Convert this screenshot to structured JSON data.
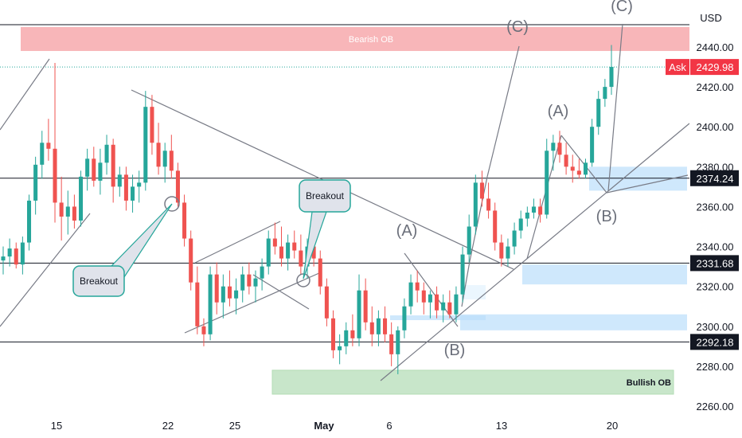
{
  "chart_data": {
    "type": "candlestick",
    "currency": "USD",
    "x_ticks": [
      "15",
      "22",
      "25",
      "May",
      "6",
      "13",
      "20"
    ],
    "y_ticks": [
      "2440.00",
      "2420.00",
      "2400.00",
      "2380.00",
      "2360.00",
      "2340.00",
      "2320.00",
      "2300.00",
      "2280.00",
      "2260.00"
    ],
    "ylim": [
      2256,
      2458
    ],
    "up_color": "#26a69a",
    "down_color": "#ef5350",
    "price_tags": [
      {
        "label": "Ask",
        "value": "2429.98",
        "color": "#f23645"
      },
      {
        "value": "2374.24",
        "color": "#131722"
      },
      {
        "value": "2331.68",
        "color": "#131722"
      },
      {
        "value": "2292.18",
        "color": "#131722"
      }
    ],
    "horizontal_levels": [
      2456,
      2374.24,
      2331.68,
      2292.18
    ],
    "zones": [
      {
        "label": "Bearish OB",
        "from": 2438,
        "to": 2450,
        "color": "#f7a9ad"
      },
      {
        "label": "Bullish OB",
        "from": 2266,
        "to": 2278,
        "color": "#a5d6a7"
      }
    ],
    "demand_boxes": [
      {
        "from": 2368,
        "to": 2380
      },
      {
        "from": 2321,
        "to": 2331
      },
      {
        "from": 2298,
        "to": 2306
      }
    ],
    "wave_labels": [
      "(C)",
      "(C)",
      "(A)",
      "(B)",
      "(A)",
      "(B)"
    ],
    "callouts": [
      "Breakout",
      "Breakout"
    ],
    "candles": [
      {
        "o": 2333,
        "h": 2340,
        "l": 2326,
        "c": 2335
      },
      {
        "o": 2335,
        "h": 2344,
        "l": 2330,
        "c": 2339
      },
      {
        "o": 2339,
        "h": 2342,
        "l": 2329,
        "c": 2331
      },
      {
        "o": 2331,
        "h": 2345,
        "l": 2326,
        "c": 2342
      },
      {
        "o": 2342,
        "h": 2366,
        "l": 2338,
        "c": 2363
      },
      {
        "o": 2363,
        "h": 2385,
        "l": 2356,
        "c": 2381
      },
      {
        "o": 2381,
        "h": 2398,
        "l": 2374,
        "c": 2392
      },
      {
        "o": 2392,
        "h": 2404,
        "l": 2383,
        "c": 2389
      },
      {
        "o": 2389,
        "h": 2432,
        "l": 2352,
        "c": 2362
      },
      {
        "o": 2362,
        "h": 2375,
        "l": 2343,
        "c": 2355
      },
      {
        "o": 2355,
        "h": 2368,
        "l": 2346,
        "c": 2360
      },
      {
        "o": 2360,
        "h": 2366,
        "l": 2349,
        "c": 2353
      },
      {
        "o": 2353,
        "h": 2378,
        "l": 2350,
        "c": 2375
      },
      {
        "o": 2375,
        "h": 2389,
        "l": 2368,
        "c": 2384
      },
      {
        "o": 2384,
        "h": 2390,
        "l": 2370,
        "c": 2373
      },
      {
        "o": 2373,
        "h": 2389,
        "l": 2366,
        "c": 2382
      },
      {
        "o": 2382,
        "h": 2396,
        "l": 2376,
        "c": 2391
      },
      {
        "o": 2391,
        "h": 2394,
        "l": 2362,
        "c": 2370
      },
      {
        "o": 2370,
        "h": 2380,
        "l": 2365,
        "c": 2376
      },
      {
        "o": 2376,
        "h": 2380,
        "l": 2358,
        "c": 2363
      },
      {
        "o": 2363,
        "h": 2376,
        "l": 2357,
        "c": 2370
      },
      {
        "o": 2370,
        "h": 2378,
        "l": 2362,
        "c": 2372
      },
      {
        "o": 2372,
        "h": 2418,
        "l": 2368,
        "c": 2410
      },
      {
        "o": 2410,
        "h": 2416,
        "l": 2386,
        "c": 2392
      },
      {
        "o": 2392,
        "h": 2402,
        "l": 2376,
        "c": 2380
      },
      {
        "o": 2380,
        "h": 2392,
        "l": 2372,
        "c": 2388
      },
      {
        "o": 2388,
        "h": 2396,
        "l": 2374,
        "c": 2378
      },
      {
        "o": 2378,
        "h": 2382,
        "l": 2360,
        "c": 2362
      },
      {
        "o": 2362,
        "h": 2366,
        "l": 2340,
        "c": 2344
      },
      {
        "o": 2344,
        "h": 2348,
        "l": 2318,
        "c": 2322
      },
      {
        "o": 2322,
        "h": 2330,
        "l": 2296,
        "c": 2300
      },
      {
        "o": 2300,
        "h": 2304,
        "l": 2290,
        "c": 2296
      },
      {
        "o": 2296,
        "h": 2330,
        "l": 2293,
        "c": 2326
      },
      {
        "o": 2326,
        "h": 2332,
        "l": 2306,
        "c": 2312
      },
      {
        "o": 2312,
        "h": 2326,
        "l": 2304,
        "c": 2320
      },
      {
        "o": 2320,
        "h": 2328,
        "l": 2310,
        "c": 2314
      },
      {
        "o": 2314,
        "h": 2324,
        "l": 2306,
        "c": 2318
      },
      {
        "o": 2318,
        "h": 2330,
        "l": 2312,
        "c": 2326
      },
      {
        "o": 2326,
        "h": 2332,
        "l": 2316,
        "c": 2320
      },
      {
        "o": 2320,
        "h": 2328,
        "l": 2312,
        "c": 2324
      },
      {
        "o": 2324,
        "h": 2334,
        "l": 2318,
        "c": 2330
      },
      {
        "o": 2330,
        "h": 2348,
        "l": 2326,
        "c": 2344
      },
      {
        "o": 2344,
        "h": 2352,
        "l": 2336,
        "c": 2340
      },
      {
        "o": 2340,
        "h": 2350,
        "l": 2330,
        "c": 2334
      },
      {
        "o": 2334,
        "h": 2346,
        "l": 2328,
        "c": 2342
      },
      {
        "o": 2342,
        "h": 2348,
        "l": 2334,
        "c": 2338
      },
      {
        "o": 2338,
        "h": 2346,
        "l": 2326,
        "c": 2330
      },
      {
        "o": 2330,
        "h": 2344,
        "l": 2324,
        "c": 2340
      },
      {
        "o": 2340,
        "h": 2346,
        "l": 2330,
        "c": 2334
      },
      {
        "o": 2334,
        "h": 2338,
        "l": 2316,
        "c": 2320
      },
      {
        "o": 2320,
        "h": 2324,
        "l": 2300,
        "c": 2304
      },
      {
        "o": 2304,
        "h": 2308,
        "l": 2284,
        "c": 2288
      },
      {
        "o": 2288,
        "h": 2296,
        "l": 2281,
        "c": 2290
      },
      {
        "o": 2290,
        "h": 2302,
        "l": 2286,
        "c": 2298
      },
      {
        "o": 2298,
        "h": 2306,
        "l": 2290,
        "c": 2294
      },
      {
        "o": 2294,
        "h": 2326,
        "l": 2290,
        "c": 2318
      },
      {
        "o": 2318,
        "h": 2324,
        "l": 2298,
        "c": 2302
      },
      {
        "o": 2302,
        "h": 2310,
        "l": 2290,
        "c": 2296
      },
      {
        "o": 2296,
        "h": 2308,
        "l": 2290,
        "c": 2304
      },
      {
        "o": 2304,
        "h": 2310,
        "l": 2292,
        "c": 2296
      },
      {
        "o": 2296,
        "h": 2302,
        "l": 2280,
        "c": 2286
      },
      {
        "o": 2286,
        "h": 2300,
        "l": 2276,
        "c": 2298
      },
      {
        "o": 2298,
        "h": 2314,
        "l": 2294,
        "c": 2310
      },
      {
        "o": 2310,
        "h": 2326,
        "l": 2306,
        "c": 2322
      },
      {
        "o": 2322,
        "h": 2328,
        "l": 2312,
        "c": 2318
      },
      {
        "o": 2318,
        "h": 2322,
        "l": 2306,
        "c": 2312
      },
      {
        "o": 2312,
        "h": 2318,
        "l": 2304,
        "c": 2316
      },
      {
        "o": 2316,
        "h": 2320,
        "l": 2304,
        "c": 2308
      },
      {
        "o": 2308,
        "h": 2316,
        "l": 2302,
        "c": 2312
      },
      {
        "o": 2312,
        "h": 2318,
        "l": 2304,
        "c": 2306
      },
      {
        "o": 2306,
        "h": 2320,
        "l": 2302,
        "c": 2316
      },
      {
        "o": 2316,
        "h": 2340,
        "l": 2312,
        "c": 2336
      },
      {
        "o": 2336,
        "h": 2356,
        "l": 2332,
        "c": 2350
      },
      {
        "o": 2350,
        "h": 2376,
        "l": 2346,
        "c": 2372
      },
      {
        "o": 2372,
        "h": 2378,
        "l": 2360,
        "c": 2364
      },
      {
        "o": 2364,
        "h": 2372,
        "l": 2354,
        "c": 2358
      },
      {
        "o": 2358,
        "h": 2362,
        "l": 2338,
        "c": 2342
      },
      {
        "o": 2342,
        "h": 2346,
        "l": 2330,
        "c": 2334
      },
      {
        "o": 2334,
        "h": 2344,
        "l": 2330,
        "c": 2340
      },
      {
        "o": 2340,
        "h": 2352,
        "l": 2336,
        "c": 2348
      },
      {
        "o": 2348,
        "h": 2358,
        "l": 2344,
        "c": 2354
      },
      {
        "o": 2354,
        "h": 2360,
        "l": 2350,
        "c": 2357
      },
      {
        "o": 2357,
        "h": 2364,
        "l": 2354,
        "c": 2360
      },
      {
        "o": 2360,
        "h": 2364,
        "l": 2352,
        "c": 2356
      },
      {
        "o": 2356,
        "h": 2394,
        "l": 2354,
        "c": 2388
      },
      {
        "o": 2388,
        "h": 2396,
        "l": 2378,
        "c": 2392
      },
      {
        "o": 2392,
        "h": 2398,
        "l": 2382,
        "c": 2386
      },
      {
        "o": 2386,
        "h": 2392,
        "l": 2376,
        "c": 2380
      },
      {
        "o": 2380,
        "h": 2386,
        "l": 2372,
        "c": 2378
      },
      {
        "o": 2378,
        "h": 2384,
        "l": 2374,
        "c": 2376
      },
      {
        "o": 2376,
        "h": 2384,
        "l": 2374,
        "c": 2382
      },
      {
        "o": 2382,
        "h": 2404,
        "l": 2380,
        "c": 2400
      },
      {
        "o": 2400,
        "h": 2418,
        "l": 2396,
        "c": 2414
      },
      {
        "o": 2414,
        "h": 2424,
        "l": 2410,
        "c": 2420
      },
      {
        "o": 2420,
        "h": 2441,
        "l": 2416,
        "c": 2430
      }
    ]
  }
}
